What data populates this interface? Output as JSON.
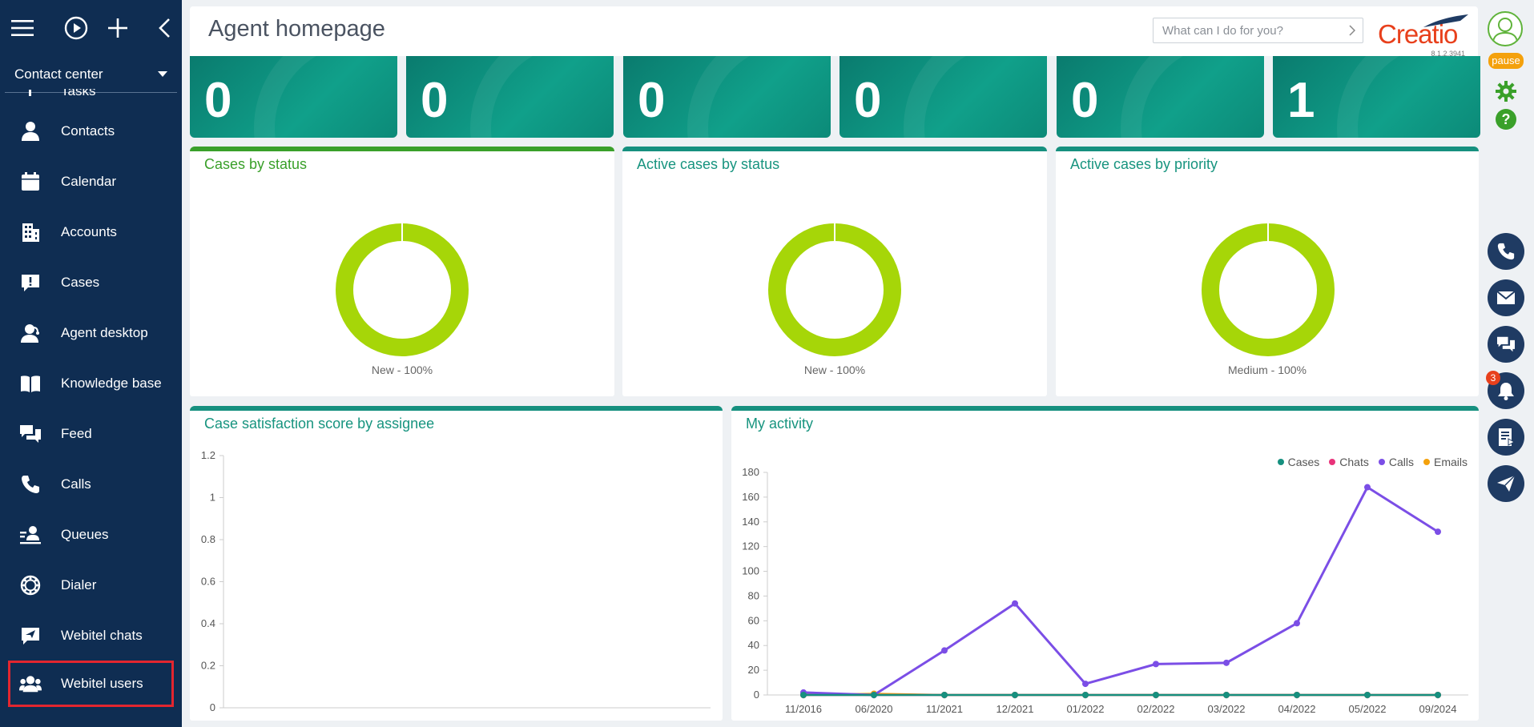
{
  "sidebar": {
    "workplace": "Contact center",
    "items": [
      {
        "label": "Tasks",
        "name": "sidebar-item-tasks",
        "icon": "tasks-icon"
      },
      {
        "label": "Contacts",
        "name": "sidebar-item-contacts",
        "icon": "person-icon"
      },
      {
        "label": "Calendar",
        "name": "sidebar-item-calendar",
        "icon": "calendar-icon"
      },
      {
        "label": "Accounts",
        "name": "sidebar-item-accounts",
        "icon": "building-icon"
      },
      {
        "label": "Cases",
        "name": "sidebar-item-cases",
        "icon": "exclamation-chat-icon"
      },
      {
        "label": "Agent desktop",
        "name": "sidebar-item-agent-desktop",
        "icon": "agent-icon"
      },
      {
        "label": "Knowledge base",
        "name": "sidebar-item-knowledge-base",
        "icon": "book-icon"
      },
      {
        "label": "Feed",
        "name": "sidebar-item-feed",
        "icon": "chat-bubbles-icon"
      },
      {
        "label": "Calls",
        "name": "sidebar-item-calls",
        "icon": "phone-icon"
      },
      {
        "label": "Queues",
        "name": "sidebar-item-queues",
        "icon": "queue-icon"
      },
      {
        "label": "Dialer",
        "name": "sidebar-item-dialer",
        "icon": "dialer-icon"
      },
      {
        "label": "Webitel chats",
        "name": "sidebar-item-webitel-chats",
        "icon": "send-chat-icon"
      },
      {
        "label": "Webitel users",
        "name": "sidebar-item-webitel-users",
        "icon": "users-icon"
      }
    ]
  },
  "header": {
    "title": "Agent homepage",
    "search_placeholder": "What can I do for you?",
    "logo": "Creatio",
    "version": "8.1.2.3941"
  },
  "rightbar": {
    "status": "pause",
    "notifications_count": "3"
  },
  "tiles": [
    "0",
    "0",
    "0",
    "0",
    "0",
    "1"
  ],
  "widgets": {
    "cases_by_status": {
      "title": "Cases by status",
      "label": "New - 100%"
    },
    "active_cases_by_status": {
      "title": "Active cases by status",
      "label": "New - 100%"
    },
    "active_cases_by_priority": {
      "title": "Active cases by priority",
      "label": "Medium - 100%"
    },
    "satisfaction": {
      "title": "Case satisfaction score by assignee"
    },
    "activity": {
      "title": "My activity"
    }
  },
  "colors": {
    "donut": "#a6d608",
    "cases": "#16907f",
    "chats": "#e8337a",
    "calls": "#7b4ee6",
    "emails": "#f4a10c"
  },
  "chart_data": [
    {
      "type": "pie",
      "title": "Cases by status",
      "slices": [
        {
          "label": "New",
          "value": 100
        }
      ]
    },
    {
      "type": "pie",
      "title": "Active cases by status",
      "slices": [
        {
          "label": "New",
          "value": 100
        }
      ]
    },
    {
      "type": "pie",
      "title": "Active cases by priority",
      "slices": [
        {
          "label": "Medium",
          "value": 100
        }
      ]
    },
    {
      "type": "bar",
      "title": "Case satisfaction score by assignee",
      "ylim": [
        0,
        1.2
      ],
      "yticks": [
        "1.2",
        "1",
        "0.8",
        "0.6",
        "0.4",
        "0.2",
        "0"
      ],
      "categories": [],
      "values": []
    },
    {
      "type": "line",
      "title": "My activity",
      "ylim": [
        0,
        180
      ],
      "yticks": [
        "180",
        "160",
        "140",
        "120",
        "100",
        "80",
        "60",
        "40",
        "20",
        "0"
      ],
      "categories": [
        "11/2016",
        "06/2020",
        "11/2021",
        "12/2021",
        "01/2022",
        "02/2022",
        "03/2022",
        "04/2022",
        "05/2022",
        "09/2024"
      ],
      "series": [
        {
          "name": "Cases",
          "values": [
            0,
            0,
            0,
            0,
            0,
            0,
            0,
            0,
            0,
            0
          ]
        },
        {
          "name": "Chats",
          "values": [
            0,
            0,
            0,
            0,
            0,
            0,
            0,
            0,
            0,
            0
          ]
        },
        {
          "name": "Calls",
          "values": [
            2,
            0,
            36,
            74,
            9,
            25,
            26,
            58,
            168,
            132
          ]
        },
        {
          "name": "Emails",
          "values": [
            0,
            1,
            0,
            0,
            0,
            0,
            0,
            0,
            0,
            0
          ]
        }
      ]
    }
  ]
}
